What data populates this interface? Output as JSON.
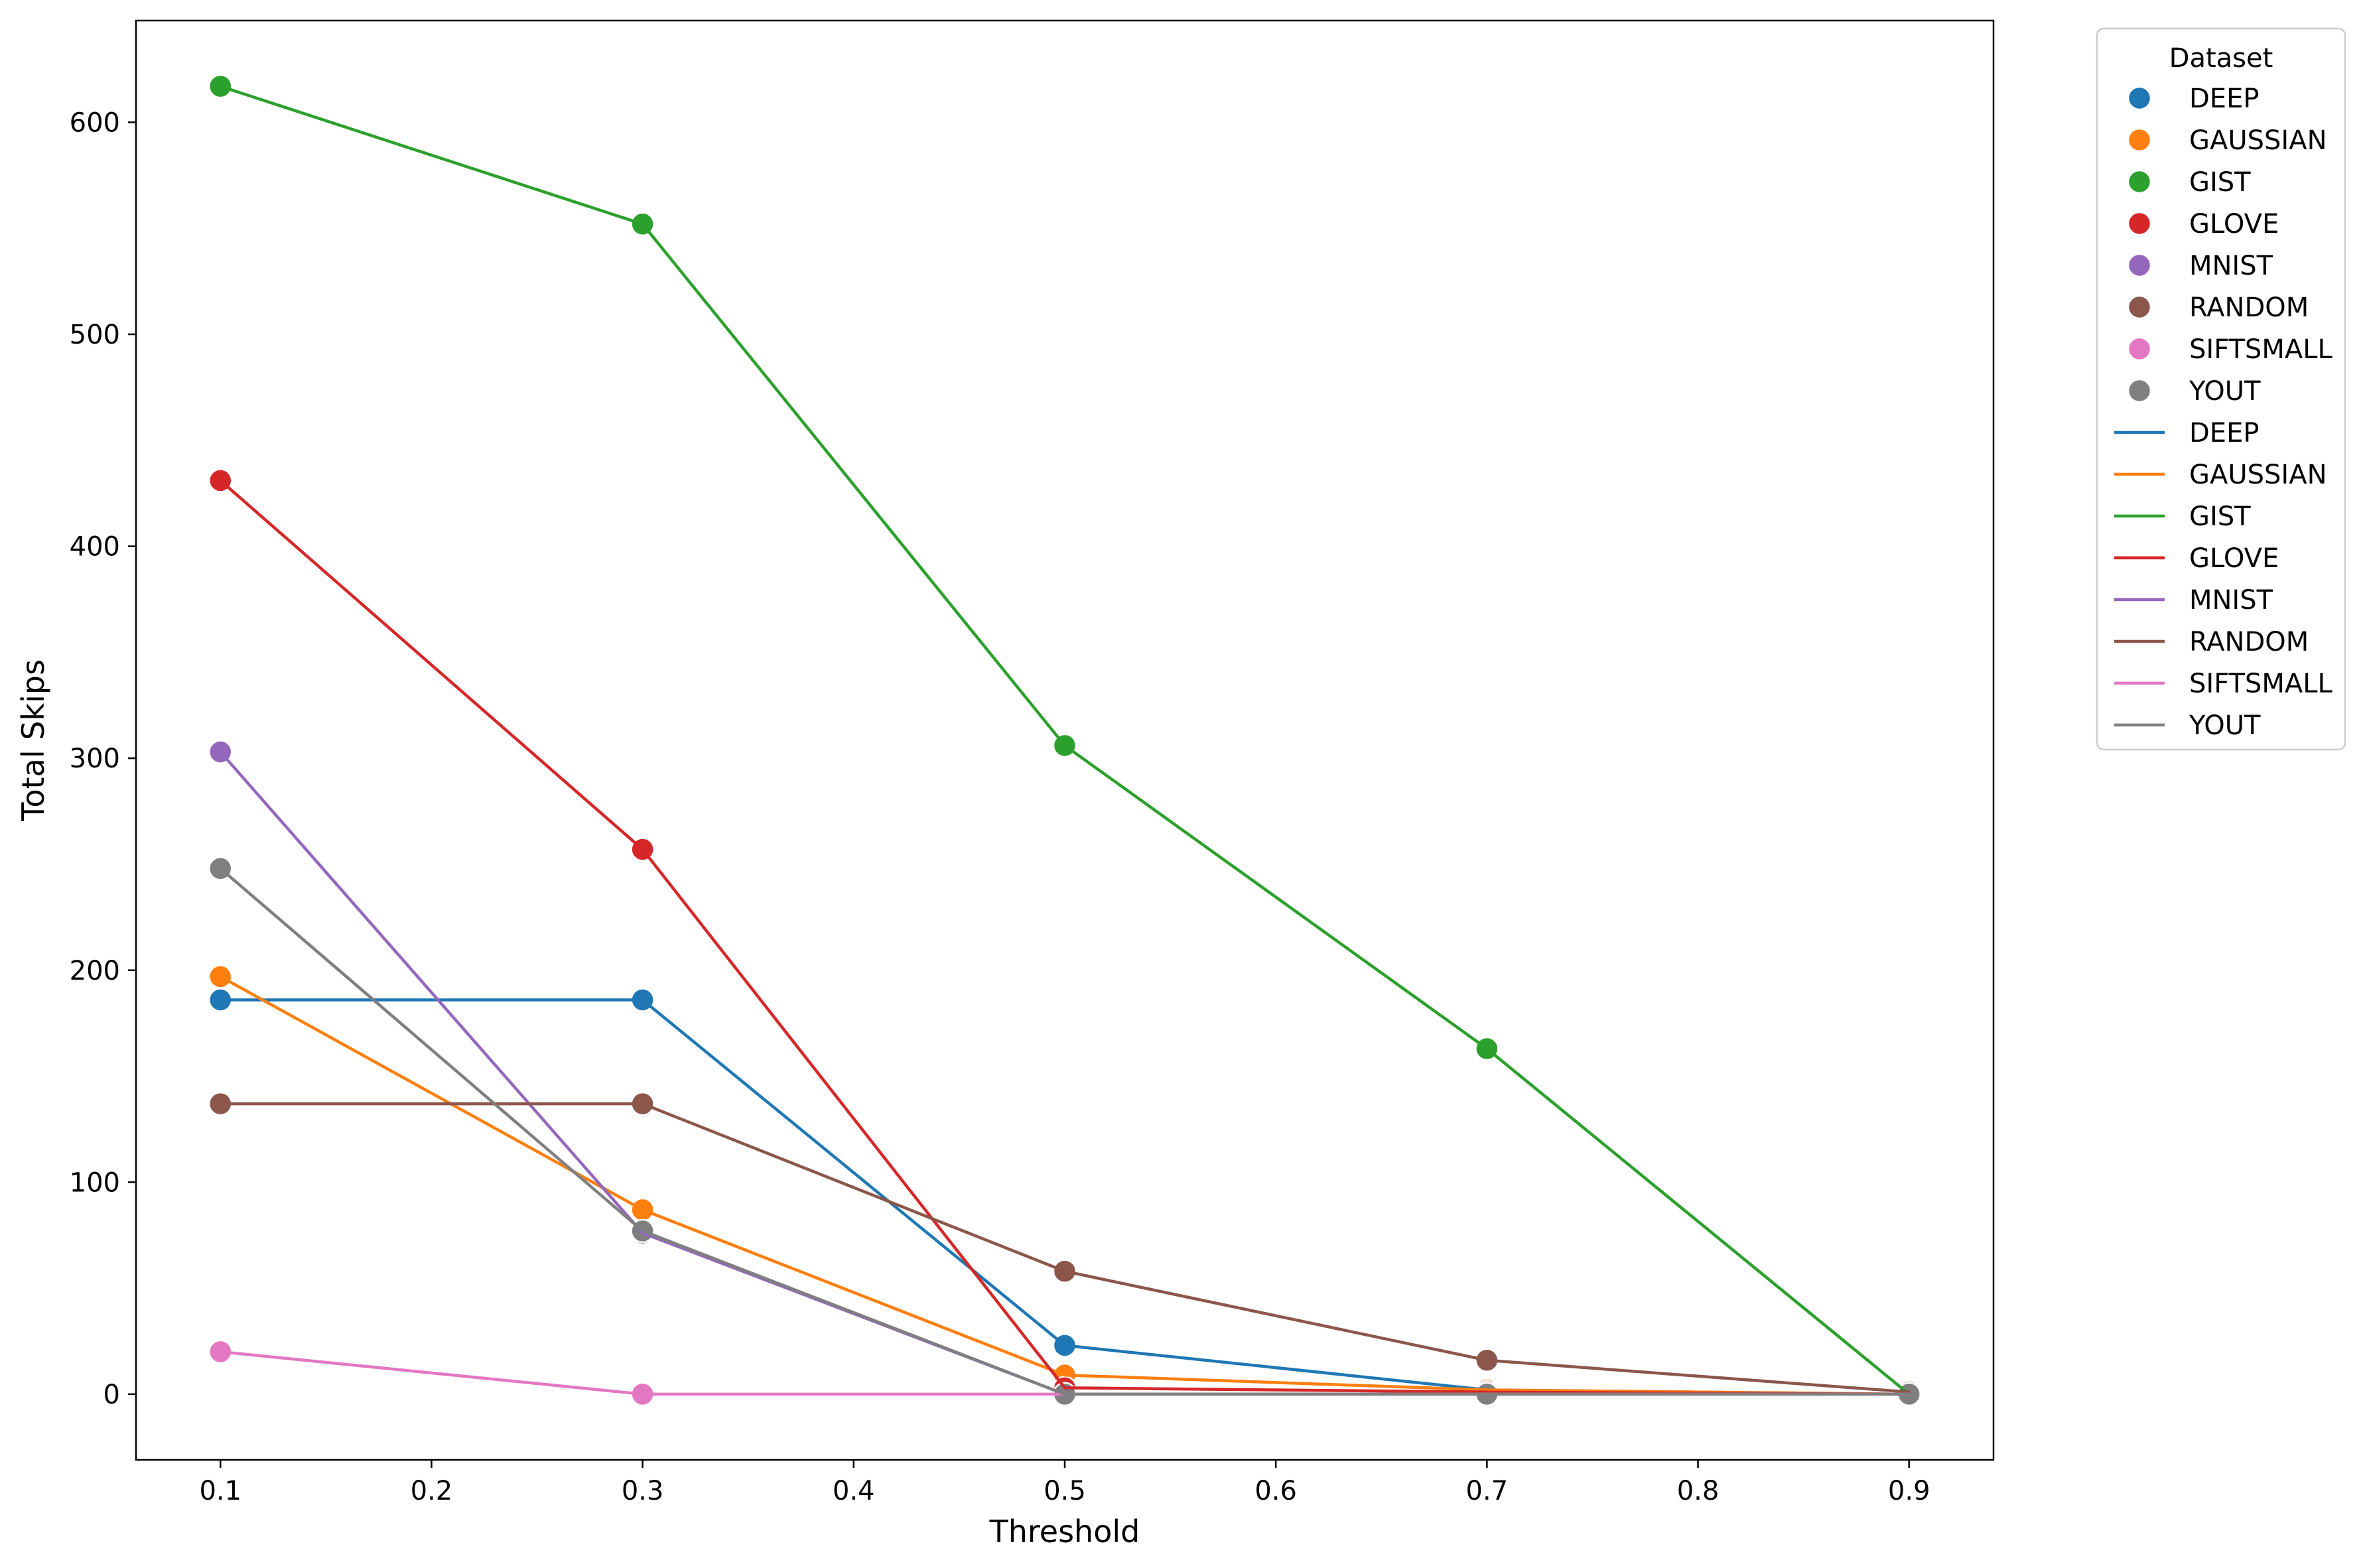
{
  "chart_data": {
    "type": "line",
    "xlabel": "Threshold",
    "ylabel": "Total Skips",
    "xlim": [
      0.06,
      0.94
    ],
    "ylim": [
      -31,
      648
    ],
    "xticks": [
      0.1,
      0.2,
      0.3,
      0.4,
      0.5,
      0.6,
      0.7,
      0.8,
      0.9
    ],
    "xtick_labels": [
      "0.1",
      "0.2",
      "0.3",
      "0.4",
      "0.5",
      "0.6",
      "0.7",
      "0.8",
      "0.9"
    ],
    "yticks": [
      0,
      100,
      200,
      300,
      400,
      500,
      600
    ],
    "ytick_labels": [
      "0",
      "100",
      "200",
      "300",
      "400",
      "500",
      "600"
    ],
    "grid": false,
    "legend": {
      "title": "Dataset",
      "placement": "outside-top-right"
    },
    "series": [
      {
        "name": "DEEP",
        "color": "#1f77b4",
        "x": [
          0.1,
          0.3,
          0.5,
          0.7,
          0.9
        ],
        "y": [
          186,
          186,
          23,
          2,
          0
        ]
      },
      {
        "name": "GAUSSIAN",
        "color": "#ff7f0e",
        "x": [
          0.1,
          0.3,
          0.5,
          0.7,
          0.9
        ],
        "y": [
          197,
          87,
          9,
          2,
          0
        ]
      },
      {
        "name": "GIST",
        "color": "#2ca02c",
        "x": [
          0.1,
          0.3,
          0.5,
          0.7,
          0.9
        ],
        "y": [
          617,
          552,
          306,
          163,
          0
        ]
      },
      {
        "name": "GLOVE",
        "color": "#d62728",
        "x": [
          0.1,
          0.3,
          0.5,
          0.7,
          0.9
        ],
        "y": [
          431,
          257,
          3,
          1,
          0
        ]
      },
      {
        "name": "MNIST",
        "color": "#9467bd",
        "x": [
          0.1,
          0.3,
          0.5,
          0.7,
          0.9
        ],
        "y": [
          303,
          76,
          0,
          0,
          0
        ]
      },
      {
        "name": "RANDOM",
        "color": "#8c564b",
        "x": [
          0.1,
          0.3,
          0.5,
          0.7,
          0.9
        ],
        "y": [
          137,
          137,
          58,
          16,
          1
        ]
      },
      {
        "name": "SIFTSMALL",
        "color": "#e377c2",
        "x": [
          0.1,
          0.3,
          0.5,
          0.7,
          0.9
        ],
        "y": [
          20,
          0,
          0,
          0,
          0
        ]
      },
      {
        "name": "YOUT",
        "color": "#7f7f7f",
        "x": [
          0.1,
          0.3,
          0.5,
          0.7,
          0.9
        ],
        "y": [
          248,
          77,
          0,
          0,
          0
        ]
      }
    ]
  }
}
